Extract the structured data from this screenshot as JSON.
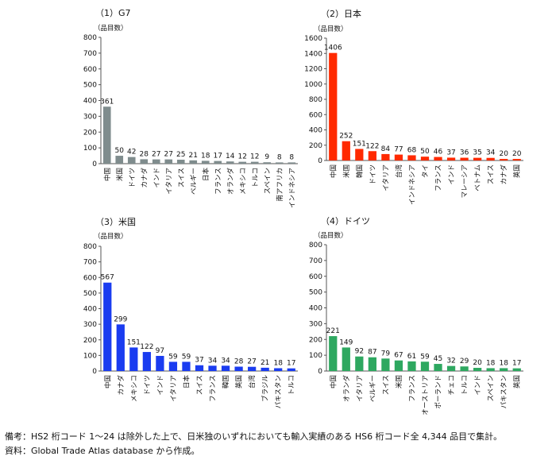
{
  "colors": {
    "axis": "#555555",
    "text": "#111111"
  },
  "notes": [
    "備考：HS2 桁コード 1〜24 は除外した上で、日米独のいずれにおいても輸入実績のある HS6 桁コード全 4,344 品目で集計。",
    "資料：Global Trade Atlas database から作成。"
  ],
  "chart_data": [
    {
      "type": "bar",
      "title": "（1）G7",
      "ylabel": "（品目数）",
      "ylim": [
        0,
        800
      ],
      "yticks": [
        0,
        100,
        200,
        300,
        400,
        500,
        600,
        700,
        800
      ],
      "color": "#7f8c8d",
      "categories": [
        "中国",
        "米国",
        "ドイツ",
        "カナダ",
        "インド",
        "イタリア",
        "スイス",
        "ベルギー",
        "日本",
        "フランス",
        "オランダ",
        "メキシコ",
        "トルコ",
        "スペイン",
        "南アフリカ",
        "インドネシア"
      ],
      "values": [
        361,
        50,
        42,
        28,
        27,
        27,
        25,
        21,
        18,
        17,
        14,
        12,
        12,
        9,
        8,
        8
      ]
    },
    {
      "type": "bar",
      "title": "（2）日本",
      "ylabel": "（品目数）",
      "ylim": [
        0,
        1600
      ],
      "yticks": [
        0,
        200,
        400,
        600,
        800,
        1000,
        1200,
        1400,
        1600
      ],
      "color": "#ff2a00",
      "categories": [
        "中国",
        "米国",
        "韓国",
        "ドイツ",
        "イタリア",
        "台湾",
        "インドネシア",
        "タイ",
        "フランス",
        "インド",
        "マレーシア",
        "ベトナム",
        "スイス",
        "カナダ",
        "英国"
      ],
      "values": [
        1406,
        252,
        151,
        122,
        84,
        77,
        68,
        50,
        46,
        37,
        36,
        35,
        34,
        20,
        20
      ]
    },
    {
      "type": "bar",
      "title": "（3）米国",
      "ylabel": "（品目数）",
      "ylim": [
        0,
        800
      ],
      "yticks": [
        0,
        100,
        200,
        300,
        400,
        500,
        600,
        700,
        800
      ],
      "color": "#1a3cf0",
      "categories": [
        "中国",
        "カナダ",
        "メキシコ",
        "ドイツ",
        "インド",
        "イタリア",
        "日本",
        "スイス",
        "フランス",
        "韓国",
        "英国",
        "台湾",
        "ブラジル",
        "パキスタン",
        "トルコ"
      ],
      "values": [
        567,
        299,
        151,
        122,
        97,
        59,
        59,
        37,
        34,
        34,
        28,
        27,
        21,
        18,
        17
      ]
    },
    {
      "type": "bar",
      "title": "（4）ドイツ",
      "ylabel": "（品目数）",
      "ylim": [
        0,
        800
      ],
      "yticks": [
        0,
        100,
        200,
        300,
        400,
        500,
        600,
        700,
        800
      ],
      "color": "#2ea860",
      "categories": [
        "中国",
        "オランダ",
        "イタリア",
        "ベルギー",
        "スイス",
        "米国",
        "フランス",
        "オーストリア",
        "ポーランド",
        "チェコ",
        "トルコ",
        "インド",
        "スペイン",
        "パキスタン",
        "英国"
      ],
      "values": [
        221,
        149,
        92,
        87,
        79,
        67,
        61,
        59,
        45,
        32,
        29,
        20,
        18,
        18,
        17
      ]
    }
  ]
}
